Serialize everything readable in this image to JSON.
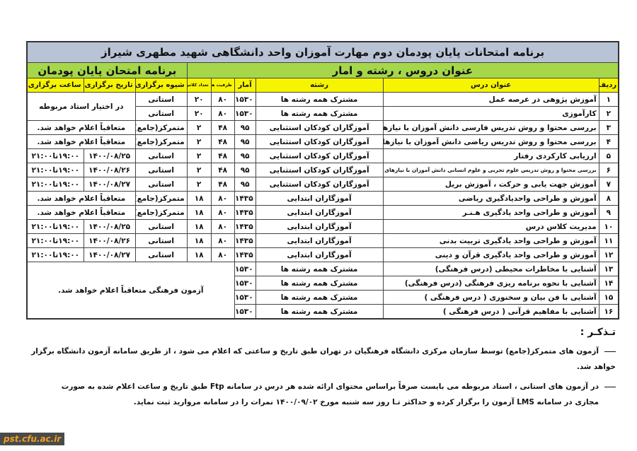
{
  "title": "برنامه امتحانات پایان پودمان دوم مهارت آموزان  واحد دانشگاهی شهید مطهری شیراز",
  "group_right": "عنوان دروس  ،  رشته  و  امار",
  "group_left": "برنامه امتحان پایان پودمان",
  "headers": {
    "num": "ردیف",
    "title": "عنوان درس",
    "major": "رشته",
    "stats": "آمار",
    "capacity": "ظرفیت هر کلاس",
    "classes": "تعداد کلاس",
    "method": "شیوه برگزاری",
    "date": "تاریخ برگزاری",
    "time": "ساعت برگزاری"
  },
  "rows": [
    {
      "num": "۱",
      "title": "آموزش پژوهی در عرصه عمل",
      "major": "مشترک همه رشته ها",
      "stats": "۱۵۳۰",
      "capacity": "۸۰",
      "classes": "۲۰",
      "method": "استانی",
      "note": "در اختیار استاد مربوطه"
    },
    {
      "num": "۲",
      "title": "کارآموزی",
      "major": "مشترک همه رشته ها",
      "stats": "۱۵۳۰",
      "capacity": "۸۰",
      "classes": "۲۰",
      "method": "استانی"
    },
    {
      "num": "۳",
      "title": "بررسی محتوا و روش تدریس فارسی دانش آموزان با نیازهای ویژه",
      "major": "آموزگاران کودکان استثنایی",
      "stats": "۹۵",
      "capacity": "۴۸",
      "classes": "۲",
      "method": "متمرکز(جامع)",
      "note": "متعاقباً اعلام خواهد شد."
    },
    {
      "num": "۴",
      "title": "بررسی محتوا و روش تدریس ریاضی دانش آموزان با نیازهای ویژه",
      "major": "آموزگاران کودکان استثنایی",
      "stats": "۹۵",
      "capacity": "۴۸",
      "classes": "۲",
      "method": "متمرکز(جامع)",
      "note": "متعاقباً اعلام خواهد شد."
    },
    {
      "num": "۵",
      "title": "ارزیابی کارکردی رفتار",
      "major": "آموزگاران کودکان استثنایی",
      "stats": "۹۵",
      "capacity": "۴۸",
      "classes": "۲",
      "method": "استانی",
      "date": "۱۴۰۰/۰۸/۲۵",
      "time": "۱۹:۰۰تا۲۱:۰۰"
    },
    {
      "num": "۶",
      "title": "بررسی محتوا و روش تدریس علوم تجربی و علوم انسانی دانش آموزان با نیازهای ویژه",
      "major": "آموزگاران کودکان استثنایی",
      "stats": "۹۵",
      "capacity": "۴۸",
      "classes": "۲",
      "method": "استانی",
      "date": "۱۴۰۰/۰۸/۲۶",
      "time": "۱۹:۰۰تا۲۱:۰۰"
    },
    {
      "num": "۷",
      "title": "آموزش جهت یابی و حرکت ، آموزش بریل",
      "major": "آموزگاران کودکان استثنایی",
      "stats": "۹۵",
      "capacity": "۴۸",
      "classes": "۲",
      "method": "استانی",
      "date": "۱۴۰۰/۰۸/۲۷",
      "time": "۱۹:۰۰تا۲۱:۰۰"
    },
    {
      "num": "۸",
      "title": "آموزش و طراحی واحدیادگیری ریاضی",
      "major": "آموزگاران ابتدایی",
      "stats": "۱۴۳۵",
      "capacity": "۸۰",
      "classes": "۱۸",
      "method": "متمرکز(جامع)",
      "note": "متعاقباً اعلام خواهد شد."
    },
    {
      "num": "۹",
      "title": "آموزش و طراحی واحد یادگیری هـنـر",
      "major": "آموزگاران ابتدایی",
      "stats": "۱۴۳۵",
      "capacity": "۸۰",
      "classes": "۱۸",
      "method": "متمرکز(جامع)",
      "note": "متعاقباً اعلام خواهد شد."
    },
    {
      "num": "۱۰",
      "title": "مدیریت کلاس درس",
      "major": "آموزگاران ابتدایی",
      "stats": "۱۴۳۵",
      "capacity": "۸۰",
      "classes": "۱۸",
      "method": "استانی",
      "date": "۱۴۰۰/۰۸/۲۵",
      "time": "۱۹:۰۰تا۲۱:۰۰"
    },
    {
      "num": "۱۱",
      "title": "آموزش و طراحی واحد یادگیری تربیت بدنی",
      "major": "آموزگاران ابتدایی",
      "stats": "۱۴۳۵",
      "capacity": "۸۰",
      "classes": "۱۸",
      "method": "استانی",
      "date": "۱۴۰۰/۰۸/۲۶",
      "time": "۱۹:۰۰تا۲۱:۰۰"
    },
    {
      "num": "۱۲",
      "title": "آموزش و طراحی واحد یادگیری قرآن و دینی",
      "major": "آموزگاران ابتدایی",
      "stats": "۱۴۳۵",
      "capacity": "۸۰",
      "classes": "۱۸",
      "method": "استانی",
      "date": "۱۴۰۰/۰۸/۲۷",
      "time": "۱۹:۰۰تا۲۱:۰۰"
    },
    {
      "num": "۱۳",
      "title": "آشنایی با مخاطرات محیطی (درس فرهنگی)",
      "major": "مشترک همه رشته ها",
      "stats": "۱۵۳۰"
    },
    {
      "num": "۱۴",
      "title": "آشنایی با نحوه برنامه ریزی فرهنگی (درس فرهنگی)",
      "major": "مشترک همه رشته ها",
      "stats": "۱۵۳۰"
    },
    {
      "num": "۱۵",
      "title": "آشنایی با فن بیان و سخنوری ( درس فرهنگی )",
      "major": "مشترک همه رشته ها",
      "stats": "۱۵۳۰"
    },
    {
      "num": "۱۶",
      "title": "آشنایی با مفاهیم قرآنی ( درس فرهنگی )",
      "major": "مشترک همه رشته ها",
      "stats": "۱۵۳۰"
    }
  ],
  "cultural_note": "آزمون فرهنگی متعاقباً اعلام خواهد شد.",
  "notes": {
    "heading": "تـذکـر :",
    "items": [
      "آزمون های متمرکز(جامع) توسط سازمان مرکزی دانشگاه فرهنگیان در تهران  طبق تاریخ و ساعتی که اعلام می شود ، از طریق سامانه آزمون دانشگاه برگزار خواهد شد.",
      "در آزمون های استانی ، استاد مربوطه می بایست صرفاً براساس محتوای ارائه شده هر درس در سامانه Ftp طبق تاریخ و ساعت اعلام شده به صورت",
      "مجازی در سامانه LMS آزمون را برگزار کرده و حداکثر تـا روز سه شنبه مورخ ۱۴۰۰/۰۹/۰۲ نمرات را در سامانه مرواريد ثبت نمايد."
    ]
  },
  "watermark": "pst.cfu.ac.ir"
}
